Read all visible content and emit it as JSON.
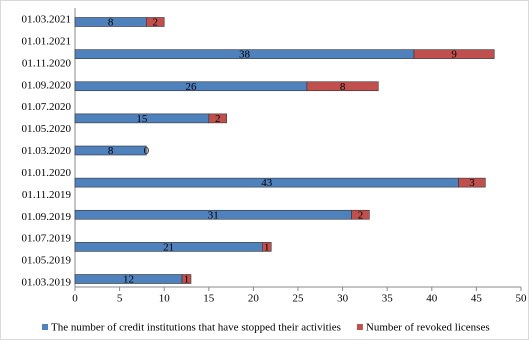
{
  "chart_data": {
    "type": "stacked-bar-horizontal",
    "y_labels": [
      "01.03.2021",
      "01.01.2021",
      "01.11.2020",
      "01.09.2020",
      "01.07.2020",
      "01.05.2020",
      "01.03.2020",
      "01.01.2020",
      "01.11.2019",
      "01.09.2019",
      "01.07.2019",
      "01.05.2019",
      "01.03.2019"
    ],
    "categories": [
      null,
      null,
      null,
      null,
      null,
      null,
      null,
      null,
      null
    ],
    "series": [
      {
        "name": "The number of credit institutions that have stopped their activities",
        "color": "#4f81bd",
        "values": [
          8,
          38,
          26,
          15,
          8,
          43,
          31,
          21,
          12
        ]
      },
      {
        "name": "Number of revoked licenses",
        "color": "#c0504d",
        "values": [
          2,
          9,
          8,
          2,
          0,
          3,
          2,
          1,
          1
        ]
      }
    ],
    "xlim": [
      0,
      50
    ],
    "xticks": [
      0,
      5,
      10,
      15,
      20,
      25,
      30,
      35,
      40,
      45,
      50
    ]
  }
}
